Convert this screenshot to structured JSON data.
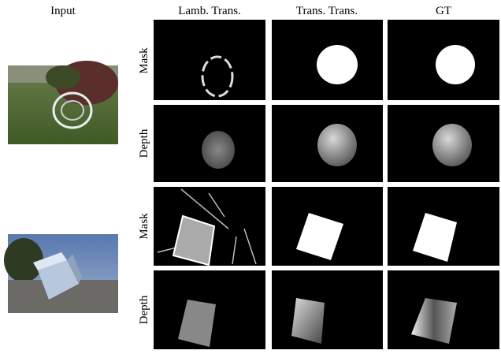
{
  "columns": [
    "Input",
    "Lamb. Trans.",
    "Trans. Trans.",
    "GT"
  ],
  "rows": [
    "Mask",
    "Depth",
    "Mask",
    "Depth"
  ]
}
